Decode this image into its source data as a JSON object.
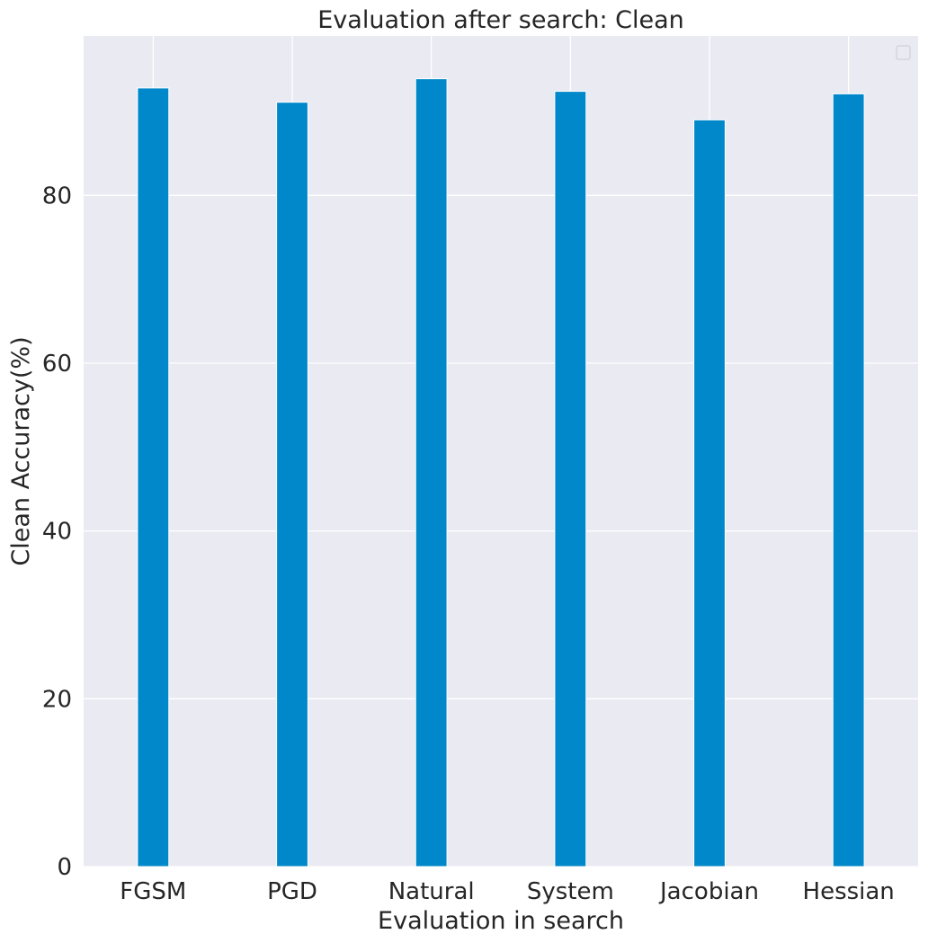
{
  "chart_data": {
    "type": "bar",
    "title": "Evaluation after search: Clean",
    "xlabel": "Evaluation in search",
    "ylabel": "Clean Accuracy(%)",
    "categories": [
      "FGSM",
      "PGD",
      "Natural",
      "System",
      "Jacobian",
      "Hessian"
    ],
    "series": [
      {
        "values": [
          92.8,
          91.1,
          93.9,
          92.4,
          89.0,
          92.1
        ]
      }
    ],
    "ylim": [
      0,
      99
    ],
    "yticks": [
      0,
      20,
      40,
      60,
      80
    ],
    "ytick_labels": [
      "0",
      "20",
      "40",
      "60",
      "80"
    ],
    "grid": true,
    "legend": "top-right (empty)",
    "colors": {
      "bar": "#0088cb",
      "background": "#eaeaf2",
      "grid": "#ffffff",
      "text": "#262626"
    }
  }
}
